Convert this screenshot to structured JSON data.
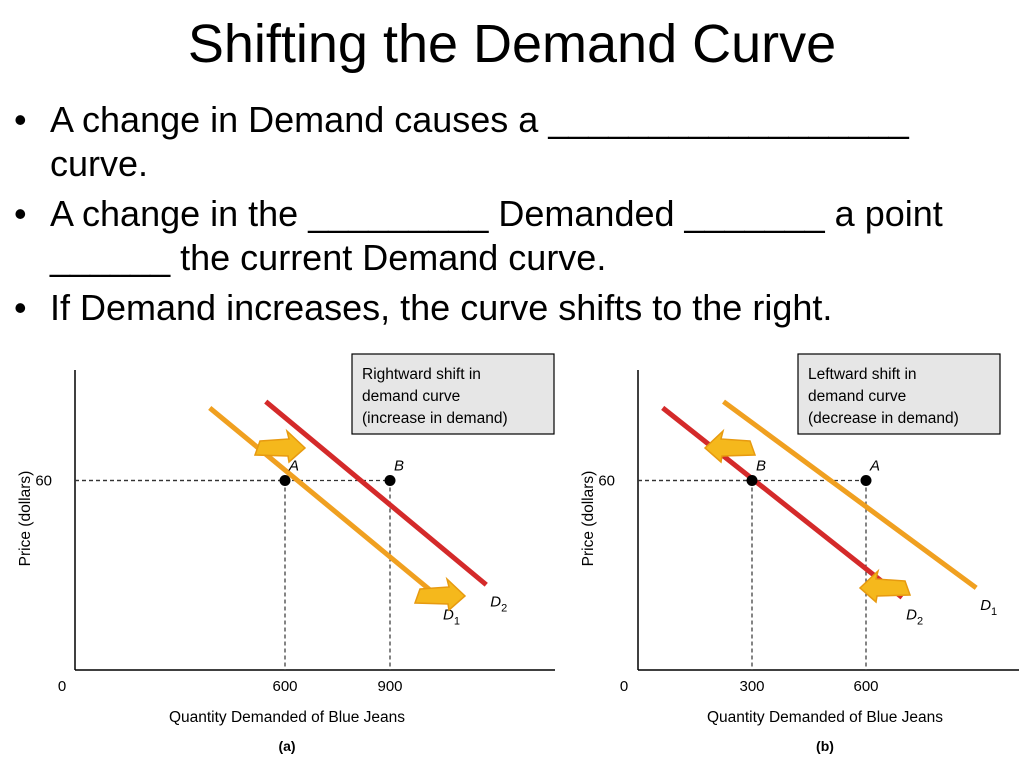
{
  "slide": {
    "title": "Shifting the Demand Curve",
    "bullet_char": "•",
    "bullets": [
      "A change in Demand causes a __________________ curve.",
      "A change in the _________ Demanded _______ a point ______ the current Demand curve.",
      "If Demand increases, the curve shifts to the right."
    ]
  },
  "colors": {
    "d1_orange": "#F0A020",
    "d2_red": "#D42A2A",
    "arrow_fill": "#F5B81C",
    "arrow_shade": "#E79A10",
    "box_fill": "#E6E6E6",
    "guide": "#333333"
  },
  "chart_data": [
    {
      "type": "line",
      "panel_label": "(a)",
      "xlabel": "Quantity Demanded of Blue Jeans",
      "ylabel": "Price (dollars)",
      "x_ticks": [
        {
          "value": 0,
          "label": "0"
        },
        {
          "value": 600,
          "label": "600"
        },
        {
          "value": 900,
          "label": "900"
        }
      ],
      "y_ticks": [
        {
          "value": 60,
          "label": "60"
        }
      ],
      "xlim": [
        0,
        1400
      ],
      "ylim": [
        0,
        95
      ],
      "series": [
        {
          "name": "D1",
          "base": "D",
          "sub": "1",
          "color_key": "d1_orange",
          "x": [
            385,
            1040
          ],
          "y": [
            83,
            23
          ]
        },
        {
          "name": "D2",
          "base": "D",
          "sub": "2",
          "color_key": "d2_red",
          "x": [
            545,
            1175
          ],
          "y": [
            85,
            27
          ]
        }
      ],
      "points": [
        {
          "label": "A",
          "x": 600,
          "y": 60
        },
        {
          "name": "B",
          "label": "B",
          "x": 900,
          "y": 60
        }
      ],
      "callout": "Rightward shift in\ndemand curve\n(increase in demand)",
      "arrow_direction": "right"
    },
    {
      "type": "line",
      "panel_label": "(b)",
      "xlabel": "Quantity Demanded of Blue Jeans",
      "ylabel": "Price (dollars)",
      "x_ticks": [
        {
          "value": 0,
          "label": "0"
        },
        {
          "value": 300,
          "label": "300"
        },
        {
          "value": 600,
          "label": "600"
        }
      ],
      "y_ticks": [
        {
          "value": 60,
          "label": "60"
        }
      ],
      "xlim": [
        0,
        1000
      ],
      "ylim": [
        0,
        95
      ],
      "series": [
        {
          "name": "D1",
          "base": "D",
          "sub": "1",
          "color_key": "d1_orange",
          "x": [
            225,
            890
          ],
          "y": [
            85,
            26
          ]
        },
        {
          "name": "D2",
          "base": "D",
          "sub": "2",
          "color_key": "d2_red",
          "x": [
            65,
            695
          ],
          "y": [
            83,
            23
          ]
        }
      ],
      "points": [
        {
          "label": "B",
          "x": 300,
          "y": 60
        },
        {
          "label": "A",
          "x": 600,
          "y": 60
        }
      ],
      "callout": "Leftward shift in\ndemand curve\n(decrease in demand)",
      "arrow_direction": "left"
    }
  ]
}
